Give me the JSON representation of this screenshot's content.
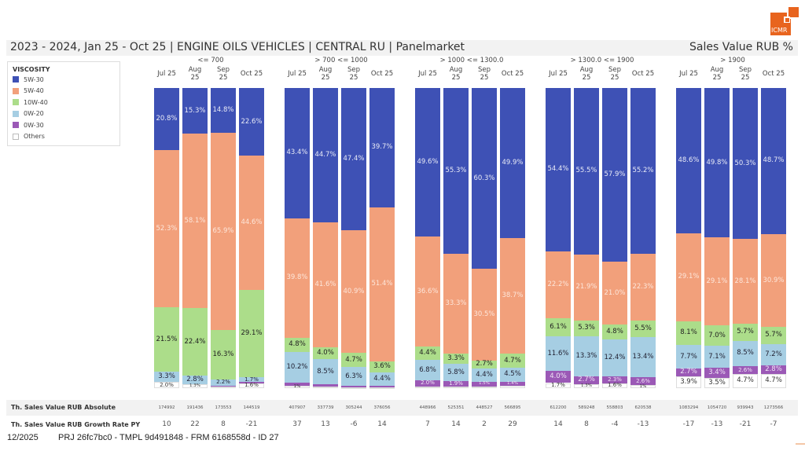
{
  "logo": {
    "text": "ICMR",
    "color": "#e8641e"
  },
  "header": {
    "title": "2023 - 2024, Jan 25 - Oct 25 | ENGINE OILS VEHICLES | CENTRAL RU | Panelmarket",
    "measure": "Sales Value RUB %"
  },
  "legend": {
    "title": "VISCOSITY",
    "items": [
      {
        "label": "5W-30",
        "color": "#3e51b5"
      },
      {
        "label": "5W-40",
        "color": "#f2a07b"
      },
      {
        "label": "10W-40",
        "color": "#acdd8a"
      },
      {
        "label": "0W-20",
        "color": "#a6cee3"
      },
      {
        "label": "0W-30",
        "color": "#9b59b6"
      },
      {
        "label": "Others",
        "color": "#ffffff"
      }
    ]
  },
  "chart_data": {
    "type": "bar",
    "stacked": true,
    "normalized": true,
    "title": "Sales Value RUB %",
    "series_names": [
      "5W-30",
      "5W-40",
      "10W-40",
      "0W-20",
      "0W-30",
      "Others"
    ],
    "months": [
      "Jul 25",
      "Aug 25",
      "Sep 25",
      "Oct 25"
    ],
    "groups": [
      {
        "label": "<= 700",
        "bars": [
          {
            "month": "Jul 25",
            "values": [
              20.8,
              52.3,
              21.5,
              3.3,
              0.1,
              2.0
            ],
            "labels": [
              "20.8%",
              "52.3%",
              "21.5%",
              "3.3%",
              "",
              "2.0%"
            ]
          },
          {
            "month": "Aug 25",
            "values": [
              15.3,
              58.1,
              22.4,
              2.8,
              0.1,
              1.3
            ],
            "labels": [
              "15.3%",
              "58.1%",
              "22.4%",
              "2.8%",
              "",
              "1.3%"
            ]
          },
          {
            "month": "Sep 25",
            "values": [
              14.8,
              65.9,
              16.3,
              2.2,
              0.3,
              0.5
            ],
            "labels": [
              "14.8%",
              "65.9%",
              "16.3%",
              "2.2%",
              "",
              ""
            ]
          },
          {
            "month": "Oct 25",
            "values": [
              22.6,
              44.6,
              29.1,
              1.7,
              0.4,
              1.6
            ],
            "labels": [
              "22.6%",
              "44.6%",
              "29.1%",
              "1.7%",
              "",
              "1.6%"
            ]
          }
        ]
      },
      {
        "label": "> 700 <= 1000",
        "bars": [
          {
            "month": "Jul 25",
            "values": [
              43.4,
              39.8,
              4.8,
              10.2,
              1.0,
              0.8
            ],
            "labels": [
              "43.4%",
              "39.8%",
              "4.8%",
              "10.2%",
              "",
              "1%"
            ]
          },
          {
            "month": "Aug 25",
            "values": [
              44.7,
              41.6,
              4.0,
              8.5,
              0.8,
              0.4
            ],
            "labels": [
              "44.7%",
              "41.6%",
              "4.0%",
              "8.5%",
              "",
              ""
            ]
          },
          {
            "month": "Sep 25",
            "values": [
              47.4,
              40.9,
              4.7,
              6.3,
              0.5,
              0.2
            ],
            "labels": [
              "47.4%",
              "40.9%",
              "4.7%",
              "6.3%",
              "",
              ""
            ]
          },
          {
            "month": "Oct 25",
            "values": [
              39.7,
              51.4,
              3.6,
              4.4,
              0.6,
              0.3
            ],
            "labels": [
              "39.7%",
              "51.4%",
              "3.6%",
              "4.4%",
              "",
              ""
            ]
          }
        ]
      },
      {
        "label": "> 1000 <= 1300.0",
        "bars": [
          {
            "month": "Jul 25",
            "values": [
              49.6,
              36.6,
              4.4,
              6.8,
              2.0,
              0.6
            ],
            "labels": [
              "49.6%",
              "36.6%",
              "4.4%",
              "6.8%",
              "2.0%",
              ""
            ]
          },
          {
            "month": "Aug 25",
            "values": [
              55.3,
              33.3,
              3.3,
              5.8,
              1.9,
              0.4
            ],
            "labels": [
              "55.3%",
              "33.3%",
              "3.3%",
              "5.8%",
              "1.9%",
              ""
            ]
          },
          {
            "month": "Sep 25",
            "values": [
              60.3,
              30.5,
              2.7,
              4.4,
              1.5,
              0.6
            ],
            "labels": [
              "60.3%",
              "30.5%",
              "2.7%",
              "4.4%",
              "1.5%",
              ""
            ]
          },
          {
            "month": "Oct 25",
            "values": [
              49.9,
              38.7,
              4.7,
              4.5,
              1.4,
              0.8
            ],
            "labels": [
              "49.9%",
              "38.7%",
              "4.7%",
              "4.5%",
              "1.4%",
              ""
            ]
          }
        ]
      },
      {
        "label": "> 1300.0 <= 1900",
        "bars": [
          {
            "month": "Jul 25",
            "values": [
              54.4,
              22.2,
              6.1,
              11.6,
              4.0,
              1.7
            ],
            "labels": [
              "54.4%",
              "22.2%",
              "6.1%",
              "11.6%",
              "4.0%",
              "1.7%"
            ]
          },
          {
            "month": "Aug 25",
            "values": [
              55.5,
              21.9,
              5.3,
              13.3,
              2.7,
              1.3
            ],
            "labels": [
              "55.5%",
              "21.9%",
              "5.3%",
              "13.3%",
              "2.7%",
              "1.3%"
            ]
          },
          {
            "month": "Sep 25",
            "values": [
              57.9,
              21.0,
              4.8,
              12.4,
              2.3,
              1.6
            ],
            "labels": [
              "57.9%",
              "21.0%",
              "4.8%",
              "12.4%",
              "2.3%",
              "1.6%"
            ]
          },
          {
            "month": "Oct 25",
            "values": [
              55.2,
              22.3,
              5.5,
              13.4,
              2.6,
              1.0
            ],
            "labels": [
              "55.2%",
              "22.3%",
              "5.5%",
              "13.4%",
              "2.6%",
              "1%"
            ]
          }
        ]
      },
      {
        "label": "> 1900",
        "bars": [
          {
            "month": "Jul 25",
            "values": [
              48.6,
              29.1,
              8.1,
              7.7,
              2.7,
              3.9
            ],
            "labels": [
              "48.6%",
              "29.1%",
              "8.1%",
              "7.7%",
              "2.7%",
              "3.9%"
            ]
          },
          {
            "month": "Aug 25",
            "values": [
              49.8,
              29.1,
              7.0,
              7.1,
              3.4,
              3.5
            ],
            "labels": [
              "49.8%",
              "29.1%",
              "7.0%",
              "7.1%",
              "3.4%",
              "3.5%"
            ]
          },
          {
            "month": "Sep 25",
            "values": [
              50.3,
              28.1,
              5.7,
              8.5,
              2.6,
              4.7
            ],
            "labels": [
              "50.3%",
              "28.1%",
              "5.7%",
              "8.5%",
              "2.6%",
              "4.7%"
            ]
          },
          {
            "month": "Oct 25",
            "values": [
              48.7,
              30.9,
              5.7,
              7.2,
              2.8,
              4.7
            ],
            "labels": [
              "48.7%",
              "30.9%",
              "5.7%",
              "7.2%",
              "2.8%",
              "4.7%"
            ]
          }
        ]
      }
    ],
    "ylim": [
      0,
      100
    ]
  },
  "table": {
    "rows": [
      {
        "label": "Th. Sales Value RUB Absolute",
        "values": [
          "174992",
          "191436",
          "173553",
          "144519",
          "407907",
          "337739",
          "305244",
          "376056",
          "448966",
          "525351",
          "448527",
          "566895",
          "612200",
          "589248",
          "558803",
          "620538",
          "1083294",
          "1054720",
          "939943",
          "1273566"
        ]
      },
      {
        "label": "Th. Sales Value RUB Growth Rate PY",
        "values": [
          "10",
          "22",
          "8",
          "-21",
          "37",
          "13",
          "-6",
          "14",
          "7",
          "14",
          "2",
          "29",
          "14",
          "8",
          "-4",
          "-13",
          "-17",
          "-13",
          "-21",
          "-7"
        ]
      }
    ]
  },
  "footer": {
    "date": "12/2025",
    "ids": "PRJ 26fc7bc0 - TMPL 9d491848 - FRM 6168558d - ID 27"
  }
}
